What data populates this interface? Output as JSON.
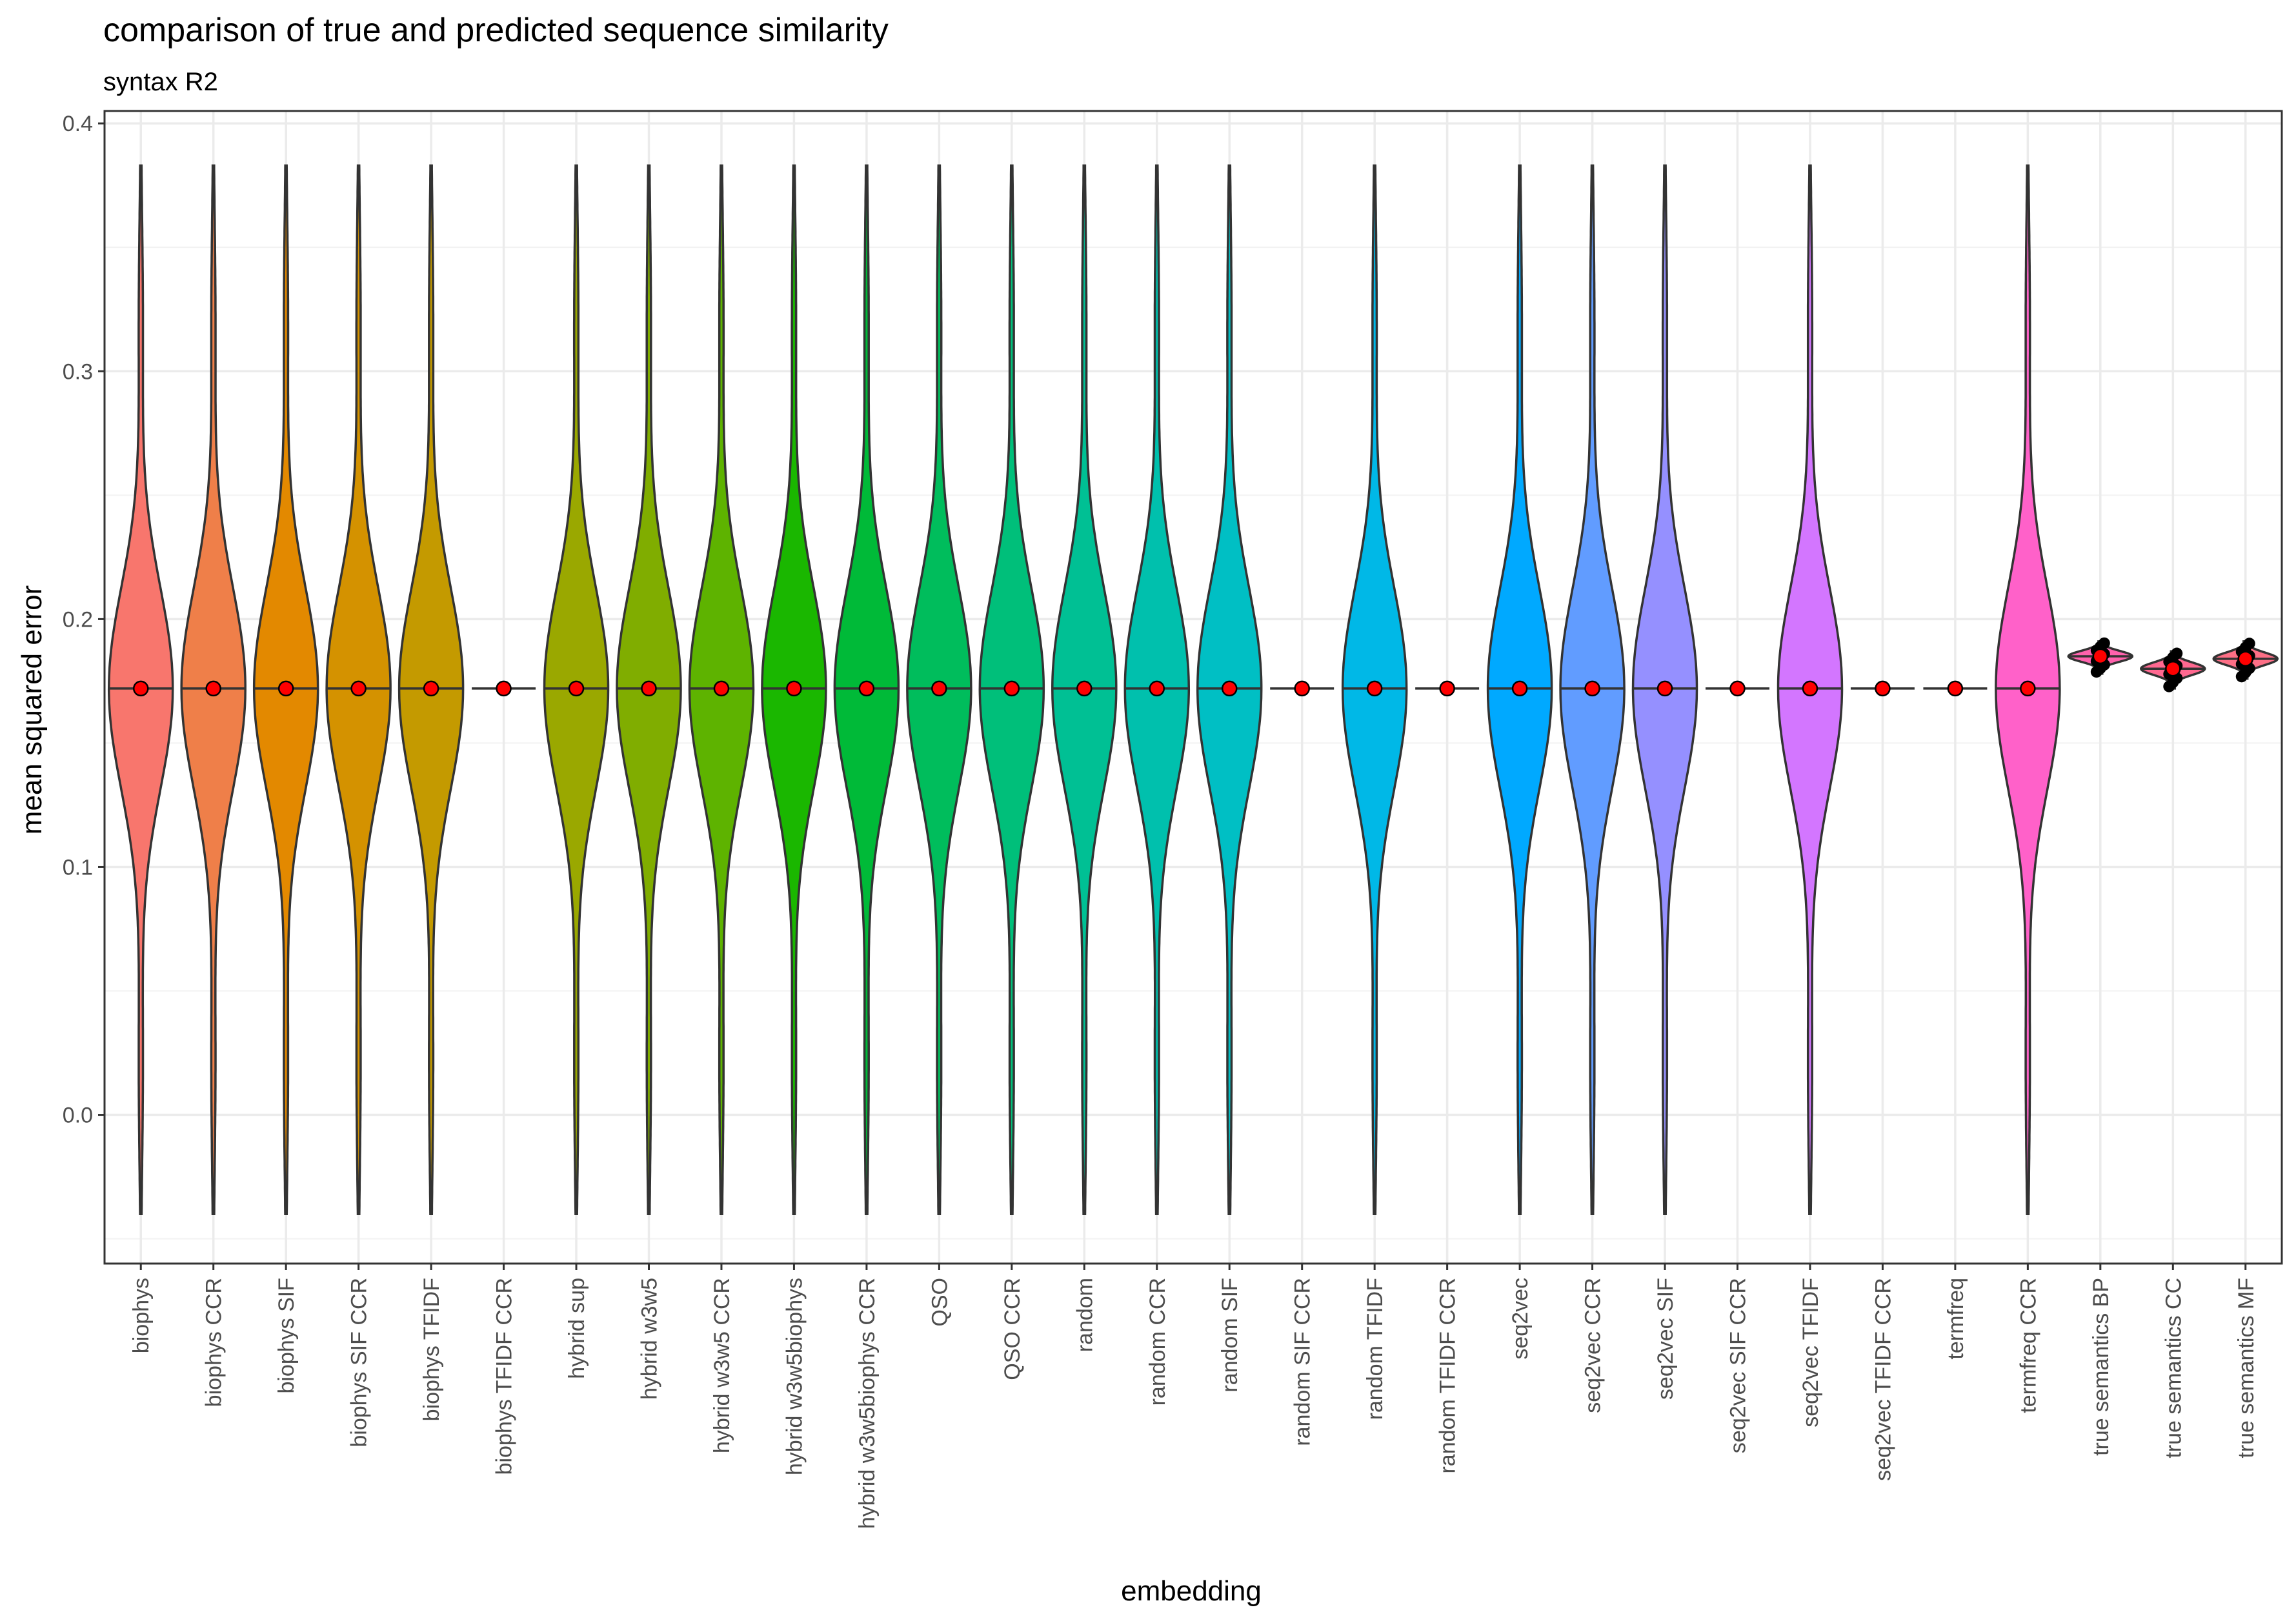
{
  "chart_data": {
    "type": "violin",
    "title": "comparison of true and predicted sequence similarity",
    "subtitle": "syntax R2",
    "xlabel": "embedding",
    "ylabel": "mean squared error",
    "ylim": [
      -0.06,
      0.405
    ],
    "yticks": [
      0.0,
      0.1,
      0.2,
      0.3,
      0.4
    ],
    "ytick_labels": [
      "0.0",
      "0.1",
      "0.2",
      "0.3",
      "0.4"
    ],
    "grid": true,
    "legend": "none",
    "point_color": "#ff0000",
    "outline_color": "#333333",
    "categories": [
      "biophys",
      "biophys CCR",
      "biophys SIF",
      "biophys SIF CCR",
      "biophys TFIDF",
      "biophys TFIDF CCR",
      "hybrid sup",
      "hybrid w3w5",
      "hybrid w3w5 CCR",
      "hybrid w3w5biophys",
      "hybrid w3w5biophys CCR",
      "QSO",
      "QSO CCR",
      "random",
      "random CCR",
      "random SIF",
      "random SIF CCR",
      "random TFIDF",
      "random TFIDF CCR",
      "seq2vec",
      "seq2vec CCR",
      "seq2vec SIF",
      "seq2vec SIF CCR",
      "seq2vec TFIDF",
      "seq2vec TFIDF CCR",
      "termfreq",
      "termfreq CCR",
      "true semantics BP",
      "true semantics CC",
      "true semantics MF"
    ],
    "series": [
      {
        "category": "biophys",
        "color": "#F8766D",
        "mean": 0.172,
        "min": -0.04,
        "max": 0.383,
        "shape": "bimodal"
      },
      {
        "category": "biophys CCR",
        "color": "#EF7F49",
        "mean": 0.172,
        "min": -0.04,
        "max": 0.383,
        "shape": "bimodal"
      },
      {
        "category": "biophys SIF",
        "color": "#E38900",
        "mean": 0.172,
        "min": -0.04,
        "max": 0.383,
        "shape": "bimodal"
      },
      {
        "category": "biophys SIF CCR",
        "color": "#D49200",
        "mean": 0.172,
        "min": -0.04,
        "max": 0.383,
        "shape": "bimodal"
      },
      {
        "category": "biophys TFIDF",
        "color": "#C49A00",
        "mean": 0.172,
        "min": -0.04,
        "max": 0.383,
        "shape": "bimodal"
      },
      {
        "category": "biophys TFIDF CCR",
        "color": "#B0A100",
        "mean": 0.172,
        "min": 0.172,
        "max": 0.172,
        "shape": "flat"
      },
      {
        "category": "hybrid sup",
        "color": "#9AA800",
        "mean": 0.172,
        "min": -0.04,
        "max": 0.383,
        "shape": "bimodal"
      },
      {
        "category": "hybrid w3w5",
        "color": "#80AD00",
        "mean": 0.172,
        "min": -0.04,
        "max": 0.383,
        "shape": "bimodal"
      },
      {
        "category": "hybrid w3w5 CCR",
        "color": "#5EB300",
        "mean": 0.172,
        "min": -0.04,
        "max": 0.383,
        "shape": "bimodal"
      },
      {
        "category": "hybrid w3w5biophys",
        "color": "#1AB700",
        "mean": 0.172,
        "min": -0.04,
        "max": 0.383,
        "shape": "bimodal"
      },
      {
        "category": "hybrid w3w5biophys CCR",
        "color": "#00BA38",
        "mean": 0.172,
        "min": -0.04,
        "max": 0.383,
        "shape": "bimodal"
      },
      {
        "category": "QSO",
        "color": "#00BD5C",
        "mean": 0.172,
        "min": -0.04,
        "max": 0.383,
        "shape": "bimodal"
      },
      {
        "category": "QSO CCR",
        "color": "#00BF7A",
        "mean": 0.172,
        "min": -0.04,
        "max": 0.383,
        "shape": "bimodal"
      },
      {
        "category": "random",
        "color": "#00C094",
        "mean": 0.172,
        "min": -0.04,
        "max": 0.383,
        "shape": "bimodal"
      },
      {
        "category": "random CCR",
        "color": "#00C0AD",
        "mean": 0.172,
        "min": -0.04,
        "max": 0.383,
        "shape": "bimodal"
      },
      {
        "category": "random SIF",
        "color": "#00BFC4",
        "mean": 0.172,
        "min": -0.04,
        "max": 0.383,
        "shape": "bimodal"
      },
      {
        "category": "random SIF CCR",
        "color": "#00BCD8",
        "mean": 0.172,
        "min": 0.172,
        "max": 0.172,
        "shape": "flat"
      },
      {
        "category": "random TFIDF",
        "color": "#00B8E7",
        "mean": 0.172,
        "min": -0.04,
        "max": 0.383,
        "shape": "bimodal"
      },
      {
        "category": "random TFIDF CCR",
        "color": "#00B0F6",
        "mean": 0.172,
        "min": 0.172,
        "max": 0.172,
        "shape": "flat"
      },
      {
        "category": "seq2vec",
        "color": "#00A9FF",
        "mean": 0.172,
        "min": -0.04,
        "max": 0.383,
        "shape": "bimodal"
      },
      {
        "category": "seq2vec CCR",
        "color": "#619CFF",
        "mean": 0.172,
        "min": -0.04,
        "max": 0.383,
        "shape": "bimodal"
      },
      {
        "category": "seq2vec SIF",
        "color": "#9590FF",
        "mean": 0.172,
        "min": -0.04,
        "max": 0.383,
        "shape": "bimodal"
      },
      {
        "category": "seq2vec SIF CCR",
        "color": "#B983FF",
        "mean": 0.172,
        "min": 0.172,
        "max": 0.172,
        "shape": "flat"
      },
      {
        "category": "seq2vec TFIDF",
        "color": "#D376FF",
        "mean": 0.172,
        "min": -0.04,
        "max": 0.383,
        "shape": "bimodal"
      },
      {
        "category": "seq2vec TFIDF CCR",
        "color": "#E76BF3",
        "mean": 0.172,
        "min": 0.172,
        "max": 0.172,
        "shape": "flat"
      },
      {
        "category": "termfreq",
        "color": "#F564E3",
        "mean": 0.172,
        "min": 0.172,
        "max": 0.172,
        "shape": "flat"
      },
      {
        "category": "termfreq CCR",
        "color": "#FF61C9",
        "mean": 0.172,
        "min": -0.04,
        "max": 0.383,
        "shape": "bimodal"
      },
      {
        "category": "true semantics BP",
        "color": "#FF62AD",
        "mean": 0.185,
        "min": 0.178,
        "max": 0.191,
        "shape": "small"
      },
      {
        "category": "true semantics CC",
        "color": "#FF6890",
        "mean": 0.18,
        "min": 0.172,
        "max": 0.187,
        "shape": "small"
      },
      {
        "category": "true semantics MF",
        "color": "#FD6F86",
        "mean": 0.184,
        "min": 0.176,
        "max": 0.191,
        "shape": "small"
      }
    ]
  }
}
